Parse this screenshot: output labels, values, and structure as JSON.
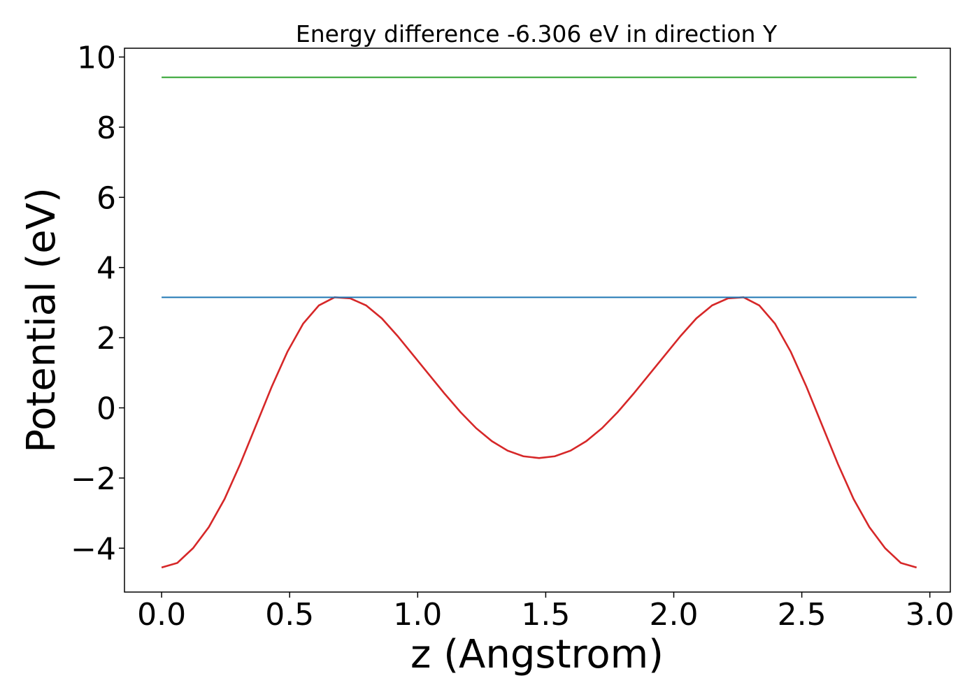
{
  "chart_data": {
    "type": "line",
    "title": "Energy difference -6.306 eV in direction Y",
    "xlabel": "z (Angstrom)",
    "ylabel": "Potential (eV)",
    "xlim": [
      -0.145,
      3.08
    ],
    "ylim": [
      -5.25,
      10.25
    ],
    "xticks": [
      0.0,
      0.5,
      1.0,
      1.5,
      2.0,
      2.5,
      3.0
    ],
    "xtick_labels": [
      "0.0",
      "0.5",
      "1.0",
      "1.5",
      "2.0",
      "2.5",
      "3.0"
    ],
    "yticks": [
      -4,
      -2,
      0,
      2,
      4,
      6,
      8,
      10
    ],
    "ytick_labels": [
      "−4",
      "−2",
      "0",
      "2",
      "4",
      "6",
      "8",
      "10"
    ],
    "grid": false,
    "series": [
      {
        "color": "#d62728",
        "x": [
          0.0,
          0.0614,
          0.1228,
          0.1843,
          0.2457,
          0.3071,
          0.3685,
          0.4299,
          0.4914,
          0.5528,
          0.6142,
          0.6756,
          0.737,
          0.7985,
          0.8599,
          0.9213,
          0.9827,
          1.0441,
          1.1055,
          1.167,
          1.2284,
          1.2898,
          1.3512,
          1.4126,
          1.4741,
          1.5355,
          1.5969,
          1.6583,
          1.7197,
          1.7812,
          1.8426,
          1.904,
          1.9654,
          2.0268,
          2.0882,
          2.1497,
          2.2111,
          2.2725,
          2.3339,
          2.3953,
          2.4568,
          2.5182,
          2.5796,
          2.641,
          2.7024,
          2.7639,
          2.8253,
          2.8867,
          2.9481
        ],
        "y": [
          -4.55,
          -4.42,
          -4.0,
          -3.4,
          -2.6,
          -1.6,
          -0.5,
          0.6,
          1.6,
          2.4,
          2.92,
          3.15,
          3.12,
          2.92,
          2.55,
          2.05,
          1.5,
          0.95,
          0.4,
          -0.12,
          -0.58,
          -0.95,
          -1.22,
          -1.38,
          -1.43,
          -1.38,
          -1.22,
          -0.95,
          -0.58,
          -0.12,
          0.4,
          0.95,
          1.5,
          2.05,
          2.55,
          2.92,
          3.12,
          3.15,
          2.92,
          2.4,
          1.6,
          0.6,
          -0.5,
          -1.6,
          -2.6,
          -3.4,
          -4.0,
          -4.42,
          -4.55
        ]
      },
      {
        "color": "#1f77b4",
        "x": [
          0.0,
          2.9481
        ],
        "y": [
          3.15,
          3.15
        ]
      },
      {
        "color": "#2ca02c",
        "x": [
          0.0,
          2.9481
        ],
        "y": [
          9.42,
          9.42
        ]
      }
    ]
  }
}
